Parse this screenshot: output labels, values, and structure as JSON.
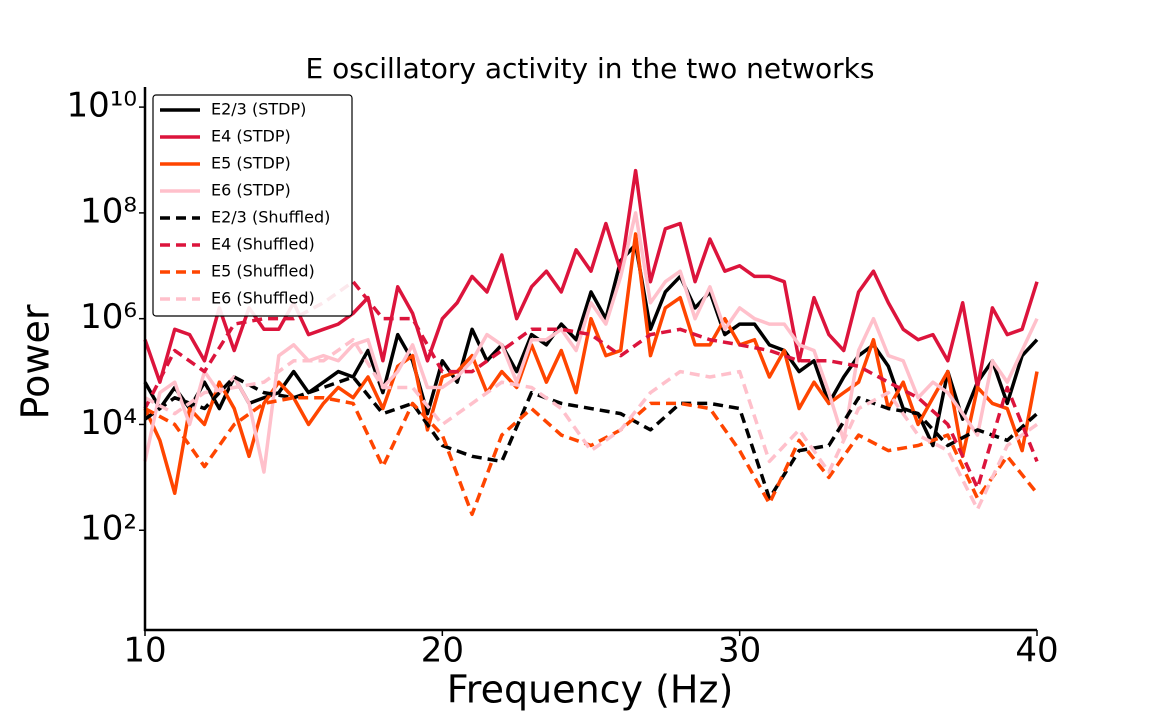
{
  "chart_data": {
    "type": "line",
    "title": "E oscillatory activity in the two networks",
    "xlabel": "Frequency (Hz)",
    "ylabel": "Power",
    "ylog": true,
    "legend": "upper left",
    "xlim": [
      10,
      40
    ],
    "xticks": [
      10,
      20,
      30,
      40
    ],
    "ylim": [
      1.3,
      24000000000.0
    ],
    "yticks": [
      {
        "value": 100,
        "label": "10²"
      },
      {
        "value": 10000,
        "label": "10⁴"
      },
      {
        "value": 1000000,
        "label": "10⁶"
      },
      {
        "value": 100000000,
        "label": "10⁸"
      },
      {
        "value": 10000000000,
        "label": "10¹⁰"
      }
    ],
    "series": [
      {
        "name": "E2/3 (STDP)",
        "color": "#000000",
        "dashed": false,
        "x": [
          10,
          10.5,
          11,
          11.5,
          12,
          12.5,
          13,
          13.5,
          14,
          14.5,
          15,
          15.5,
          16,
          16.5,
          17,
          17.5,
          18,
          18.5,
          19,
          19.5,
          20,
          20.5,
          21,
          21.5,
          22,
          22.5,
          23,
          23.5,
          24,
          24.5,
          25,
          25.5,
          26,
          26.5,
          27,
          27.5,
          28,
          28.5,
          29,
          29.5,
          30,
          30.5,
          31,
          31.5,
          32,
          32.5,
          33,
          33.5,
          34,
          34.5,
          35,
          35.5,
          36,
          36.5,
          37,
          37.5,
          38,
          38.5,
          39,
          39.5,
          40
        ],
        "values": [
          63000.0,
          20000.0,
          50000.0,
          20000.0,
          63000.0,
          20000.0,
          79000.0,
          25000.0,
          32000.0,
          40000.0,
          100000.0,
          40000.0,
          63000.0,
          100000.0,
          79000.0,
          250000.0,
          40000.0,
          500000.0,
          160000.0,
          16000.0,
          160000.0,
          63000.0,
          630000.0,
          160000.0,
          320000.0,
          100000.0,
          500000.0,
          320000.0,
          790000.0,
          400000.0,
          3200000.0,
          1000000.0,
          12600000.0,
          25000000.0,
          630000.0,
          3200000.0,
          6300000.0,
          1600000.0,
          3200000.0,
          500000.0,
          790000.0,
          790000.0,
          320000.0,
          250000.0,
          100000.0,
          160000.0,
          25000.0,
          79000.0,
          200000.0,
          320000.0,
          126000.0,
          20000.0,
          16000.0,
          4000.0,
          100000.0,
          12600.0,
          63000.0,
          160000.0,
          25000.0,
          200000.0,
          400000.0
        ]
      },
      {
        "name": "E4 (STDP)",
        "color": "#dc143c",
        "dashed": false,
        "x": [
          10,
          10.5,
          11,
          11.5,
          12,
          12.5,
          13,
          13.5,
          14,
          14.5,
          15,
          15.5,
          16,
          16.5,
          17,
          17.5,
          18,
          18.5,
          19,
          19.5,
          20,
          20.5,
          21,
          21.5,
          22,
          22.5,
          23,
          23.5,
          24,
          24.5,
          25,
          25.5,
          26,
          26.5,
          27,
          27.5,
          28,
          28.5,
          29,
          29.5,
          30,
          30.5,
          31,
          31.5,
          32,
          32.5,
          33,
          33.5,
          34,
          34.5,
          35,
          35.5,
          36,
          36.5,
          37,
          37.5,
          38,
          38.5,
          39,
          39.5,
          40
        ],
        "values": [
          400000.0,
          63000.0,
          630000.0,
          500000.0,
          160000.0,
          1600000.0,
          250000.0,
          1600000.0,
          630000.0,
          630000.0,
          2000000.0,
          500000.0,
          630000.0,
          790000.0,
          1260000.0,
          2500000.0,
          160000.0,
          4000000.0,
          1260000.0,
          160000.0,
          1000000.0,
          2000000.0,
          6300000.0,
          3200000.0,
          16000000.0,
          1000000.0,
          4000000.0,
          7900000.0,
          3200000.0,
          20000000.0,
          7900000.0,
          63000000.0,
          7900000.0,
          630000000.0,
          5000000.0,
          50000000.0,
          63000000.0,
          5000000.0,
          32000000.0,
          7900000.0,
          10000000.0,
          6300000.0,
          6300000.0,
          5000000.0,
          160000.0,
          2500000.0,
          500000.0,
          250000.0,
          3200000.0,
          7900000.0,
          2000000.0,
          630000.0,
          400000.0,
          500000.0,
          160000.0,
          2000000.0,
          50000.0,
          1600000.0,
          500000.0,
          630000.0,
          5000000.0
        ]
      },
      {
        "name": "E5 (STDP)",
        "color": "#ff4500",
        "dashed": false,
        "x": [
          10,
          10.5,
          11,
          11.5,
          12,
          12.5,
          13,
          13.5,
          14,
          14.5,
          15,
          15.5,
          16,
          16.5,
          17,
          17.5,
          18,
          18.5,
          19,
          19.5,
          20,
          20.5,
          21,
          21.5,
          22,
          22.5,
          23,
          23.5,
          24,
          24.5,
          25,
          25.5,
          26,
          26.5,
          27,
          27.5,
          28,
          28.5,
          29,
          29.5,
          30,
          30.5,
          31,
          31.5,
          32,
          32.5,
          33,
          33.5,
          34,
          34.5,
          35,
          35.5,
          36,
          36.5,
          37,
          37.5,
          38,
          38.5,
          39,
          39.5,
          40
        ],
        "values": [
          20000.0,
          5000.0,
          500,
          20000.0,
          10000.0,
          63000.0,
          20000.0,
          2500.0,
          25000.0,
          63000.0,
          32000.0,
          10000.0,
          25000.0,
          50000.0,
          32000.0,
          79000.0,
          20000.0,
          126000.0,
          200000.0,
          7900.0,
          79000.0,
          100000.0,
          200000.0,
          40000.0,
          100000.0,
          50000.0,
          320000.0,
          63000.0,
          250000.0,
          40000.0,
          1000000.0,
          200000.0,
          250000.0,
          40000000.0,
          200000.0,
          1600000.0,
          2500000.0,
          320000.0,
          320000.0,
          1000000.0,
          320000.0,
          400000.0,
          79000.0,
          250000.0,
          20000.0,
          63000.0,
          25000.0,
          40000.0,
          63000.0,
          400000.0,
          20000.0,
          63000.0,
          10000.0,
          32000.0,
          100000.0,
          2500.0,
          50000.0,
          25000.0,
          20000.0,
          3200.0,
          100000.0
        ]
      },
      {
        "name": "E6 (STDP)",
        "color": "#ffc0cb",
        "dashed": false,
        "x": [
          10,
          10.5,
          11,
          11.5,
          12,
          12.5,
          13,
          13.5,
          14,
          14.5,
          15,
          15.5,
          16,
          16.5,
          17,
          17.5,
          18,
          18.5,
          19,
          19.5,
          20,
          20.5,
          21,
          21.5,
          22,
          22.5,
          23,
          23.5,
          24,
          24.5,
          25,
          25.5,
          26,
          26.5,
          27,
          27.5,
          28,
          28.5,
          29,
          29.5,
          30,
          30.5,
          31,
          31.5,
          32,
          32.5,
          33,
          33.5,
          34,
          34.5,
          35,
          35.5,
          36,
          36.5,
          37,
          37.5,
          38,
          38.5,
          39,
          39.5,
          40
        ],
        "values": [
          2000.0,
          40000.0,
          63000.0,
          10000.0,
          100000.0,
          40000.0,
          79000.0,
          25000.0,
          1260.0,
          200000.0,
          320000.0,
          160000.0,
          200000.0,
          160000.0,
          320000.0,
          400000.0,
          50000.0,
          100000.0,
          320000.0,
          50000.0,
          50000.0,
          79000.0,
          160000.0,
          500000.0,
          320000.0,
          63000.0,
          400000.0,
          400000.0,
          630000.0,
          250000.0,
          2000000.0,
          790000.0,
          6300000.0,
          100000000.0,
          2000000.0,
          5000000.0,
          7900000.0,
          1000000.0,
          4000000.0,
          630000.0,
          1600000.0,
          1000000.0,
          790000.0,
          790000.0,
          320000.0,
          250000.0,
          40000.0,
          5000.0,
          250000.0,
          1000000.0,
          200000.0,
          160000.0,
          32000.0,
          63000.0,
          40000.0,
          16000.0,
          6300.0,
          160000.0,
          63000.0,
          250000.0,
          1000000.0
        ]
      },
      {
        "name": "E2/3 (Shuffled)",
        "color": "#000000",
        "dashed": true,
        "x": [
          10,
          11,
          12,
          13,
          14,
          15,
          16,
          17,
          18,
          19,
          20,
          21,
          22,
          23,
          24,
          25,
          26,
          27,
          28,
          29,
          30,
          31,
          32,
          33,
          34,
          35,
          36,
          37,
          38,
          39,
          40
        ],
        "values": [
          12600.0,
          32000.0,
          20000.0,
          79000.0,
          40000.0,
          32000.0,
          50000.0,
          79000.0,
          16000.0,
          25000.0,
          4000.0,
          2500.0,
          2000.0,
          40000.0,
          25000.0,
          20000.0,
          16000.0,
          7900.0,
          25000.0,
          25000.0,
          20000.0,
          400,
          3200.0,
          4000.0,
          32000.0,
          20000.0,
          16000.0,
          4000.0,
          7900.0,
          5000.0,
          16000.0
        ]
      },
      {
        "name": "E4 (Shuffled)",
        "color": "#dc143c",
        "dashed": true,
        "x": [
          10,
          11,
          12,
          13,
          14,
          15,
          16,
          17,
          18,
          19,
          20,
          21,
          22,
          23,
          24,
          25,
          26,
          27,
          28,
          29,
          30,
          31,
          32,
          33,
          34,
          35,
          36,
          37,
          38,
          39,
          40
        ],
        "values": [
          20000.0,
          250000.0,
          100000.0,
          790000.0,
          1000000.0,
          1000000.0,
          2000000.0,
          5000000.0,
          1000000.0,
          1000000.0,
          100000.0,
          100000.0,
          250000.0,
          630000.0,
          630000.0,
          500000.0,
          200000.0,
          500000.0,
          630000.0,
          400000.0,
          320000.0,
          250000.0,
          160000.0,
          160000.0,
          126000.0,
          63000.0,
          32000.0,
          10000.0,
          630,
          50000.0,
          2000.0
        ]
      },
      {
        "name": "E5 (Shuffled)",
        "color": "#ff4500",
        "dashed": true,
        "x": [
          10,
          11,
          12,
          13,
          14,
          15,
          16,
          17,
          18,
          19,
          20,
          21,
          22,
          23,
          24,
          25,
          26,
          27,
          28,
          29,
          30,
          31,
          32,
          33,
          34,
          35,
          36,
          37,
          38,
          39,
          40
        ],
        "values": [
          20000.0,
          10000.0,
          1600.0,
          10000.0,
          25000.0,
          32000.0,
          32000.0,
          25000.0,
          1600.0,
          25000.0,
          6300.0,
          200,
          6300.0,
          20000.0,
          6300.0,
          4000.0,
          7900.0,
          25000.0,
          25000.0,
          20000.0,
          3200.0,
          320,
          5000.0,
          1000.0,
          6300.0,
          3200.0,
          4000.0,
          6300.0,
          400,
          2500.0,
          500
        ]
      },
      {
        "name": "E6 (Shuffled)",
        "color": "#ffc0cb",
        "dashed": true,
        "x": [
          10,
          11,
          12,
          13,
          14,
          15,
          16,
          17,
          18,
          19,
          20,
          21,
          22,
          23,
          24,
          25,
          26,
          27,
          28,
          29,
          30,
          31,
          32,
          33,
          34,
          35,
          36,
          37,
          38,
          39,
          40
        ],
        "values": [
          32000.0,
          16000.0,
          40000.0,
          50000.0,
          63000.0,
          160000.0,
          160000.0,
          400000.0,
          50000.0,
          50000.0,
          10000.0,
          25000.0,
          63000.0,
          50000.0,
          20000.0,
          3200.0,
          7900.0,
          40000.0,
          100000.0,
          79000.0,
          100000.0,
          2000.0,
          7900.0,
          1260.0,
          20000.0,
          40000.0,
          6300.0,
          3200.0,
          250,
          4000.0,
          10000.0
        ]
      }
    ]
  }
}
